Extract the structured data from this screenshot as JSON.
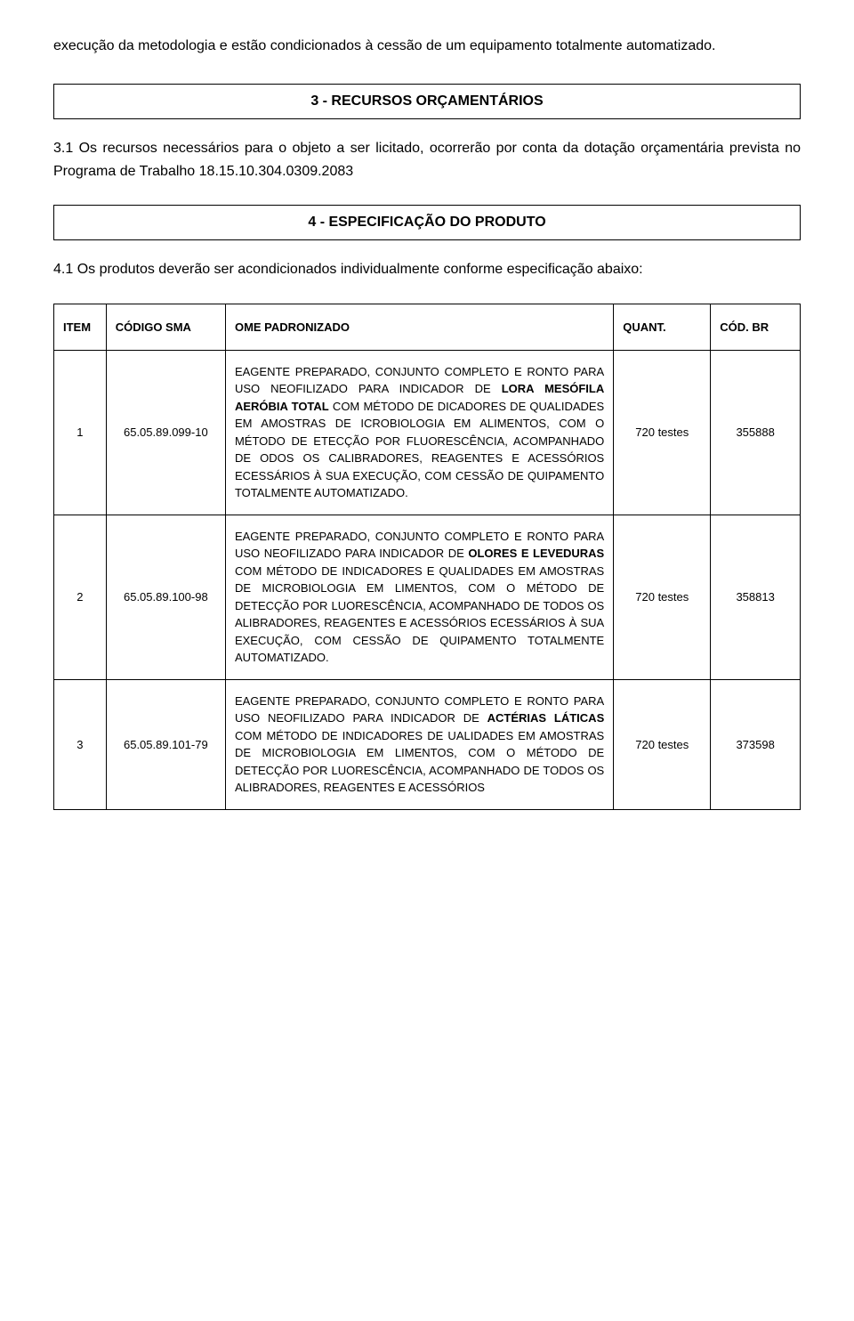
{
  "intro": "execução da metodologia e estão condicionados à cessão de um equipamento totalmente automatizado.",
  "section3": {
    "title": "3 - RECURSOS ORÇAMENTÁRIOS",
    "para": "3.1 Os recursos necessários para o objeto a ser licitado, ocorrerão por conta da dotação orçamentária prevista no Programa de Trabalho 18.15.10.304.0309.2083"
  },
  "section4": {
    "title": "4 - ESPECIFICAÇÃO DO PRODUTO",
    "para": "4.1 Os produtos deverão ser acondicionados individualmente conforme especificação abaixo:"
  },
  "table": {
    "headers": {
      "item": "ITEM",
      "codigo": "CÓDIGO SMA",
      "nome": "OME PADRONIZADO",
      "quant": "QUANT.",
      "codbr": "CÓD. BR"
    },
    "rows": [
      {
        "item": "1",
        "codigo": "65.05.89.099-10",
        "desc_pre": "EAGENTE PREPARADO, CONJUNTO COMPLETO E RONTO PARA USO NEOFILIZADO PARA INDICADOR DE ",
        "desc_bold": "LORA MESÓFILA AERÓBIA TOTAL",
        "desc_post": " COM MÉTODO DE DICADORES DE QUALIDADES EM AMOSTRAS DE ICROBIOLOGIA EM ALIMENTOS, COM O MÉTODO DE ETECÇÃO POR FLUORESCÊNCIA, ACOMPANHADO DE ODOS OS CALIBRADORES, REAGENTES E ACESSÓRIOS ECESSÁRIOS À SUA EXECUÇÃO, COM CESSÃO DE QUIPAMENTO TOTALMENTE AUTOMATIZADO.",
        "quant": "720 testes",
        "codbr": "355888"
      },
      {
        "item": "2",
        "codigo": "65.05.89.100-98",
        "desc_pre": "EAGENTE PREPARADO, CONJUNTO COMPLETO E RONTO PARA USO NEOFILIZADO PARA INDICADOR DE ",
        "desc_bold": "OLORES E LEVEDURAS",
        "desc_post": " COM MÉTODO DE INDICADORES E QUALIDADES EM AMOSTRAS DE MICROBIOLOGIA EM LIMENTOS, COM O MÉTODO DE DETECÇÃO POR LUORESCÊNCIA, ACOMPANHADO DE TODOS OS ALIBRADORES, REAGENTES E ACESSÓRIOS ECESSÁRIOS À SUA EXECUÇÃO, COM CESSÃO DE QUIPAMENTO TOTALMENTE AUTOMATIZADO.",
        "quant": "720 testes",
        "codbr": "358813"
      },
      {
        "item": "3",
        "codigo": "65.05.89.101-79",
        "desc_pre": "EAGENTE PREPARADO, CONJUNTO COMPLETO E RONTO PARA USO NEOFILIZADO PARA INDICADOR DE ",
        "desc_bold": "ACTÉRIAS LÁTICAS",
        "desc_post": " COM MÉTODO DE INDICADORES DE UALIDADES EM AMOSTRAS DE MICROBIOLOGIA EM LIMENTOS, COM O MÉTODO DE DETECÇÃO POR LUORESCÊNCIA, ACOMPANHADO DE TODOS OS ALIBRADORES, REAGENTES E ACESSÓRIOS",
        "quant": "720 testes",
        "codbr": "373598"
      }
    ]
  }
}
